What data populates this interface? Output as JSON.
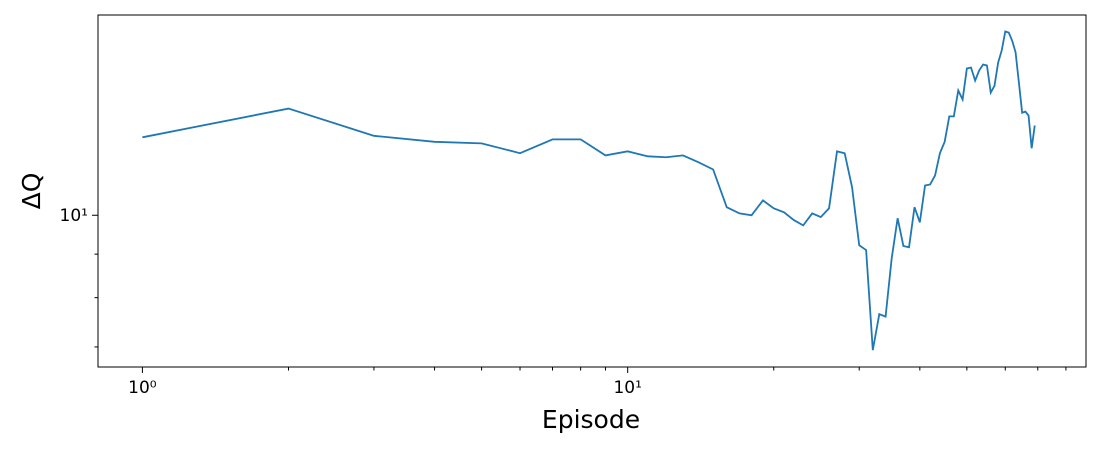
{
  "chart_data": {
    "type": "line",
    "xlabel": "Episode",
    "ylabel": "ΔQ",
    "xscale": "log",
    "yscale": "log",
    "xlim": [
      0.81,
      88
    ],
    "ylim": [
      6.63,
      17.2
    ],
    "xticks": [
      {
        "value": 1,
        "label": "10⁰"
      },
      {
        "value": 10,
        "label": "10¹"
      }
    ],
    "xminorticks": [
      2,
      3,
      4,
      5,
      6,
      7,
      8,
      9,
      20,
      30,
      40,
      50,
      60,
      70,
      80
    ],
    "yticks": [
      {
        "value": 10,
        "label": "10¹"
      }
    ],
    "yminorticks": [
      7,
      8,
      9
    ],
    "series": [
      {
        "color": "#1f77b4",
        "x": [
          1,
          2,
          3,
          4,
          5,
          6,
          7,
          8,
          9,
          10,
          11,
          12,
          13,
          14,
          15,
          16,
          17,
          18,
          19,
          20,
          21,
          22,
          23,
          24,
          25,
          26,
          27,
          28,
          29,
          30,
          31,
          32,
          33,
          34,
          35,
          36,
          37,
          38,
          39,
          40,
          41,
          42,
          43,
          44,
          45,
          46,
          47,
          48,
          49,
          50,
          51,
          52,
          53,
          54,
          55,
          56,
          57,
          58,
          59,
          60,
          61,
          62,
          63,
          64,
          65,
          66,
          67,
          68,
          69
        ],
        "values": [
          12.35,
          13.35,
          12.4,
          12.2,
          12.15,
          11.83,
          12.28,
          12.28,
          11.76,
          11.89,
          11.73,
          11.7,
          11.76,
          11.54,
          11.32,
          10.22,
          10.05,
          10.0,
          10.41,
          10.19,
          10.08,
          9.87,
          9.73,
          10.05,
          9.95,
          10.19,
          11.89,
          11.83,
          10.79,
          9.22,
          9.1,
          6.94,
          7.65,
          7.6,
          8.9,
          9.92,
          9.2,
          9.17,
          10.22,
          9.81,
          10.84,
          10.87,
          11.14,
          11.83,
          12.2,
          13.07,
          13.07,
          14.02,
          13.68,
          14.88,
          14.92,
          14.4,
          14.8,
          15.04,
          15.0,
          13.94,
          14.2,
          15.12,
          15.63,
          16.45,
          16.4,
          16.04,
          15.55,
          14.32,
          13.2,
          13.24,
          13.1,
          11.99,
          12.75
        ]
      }
    ]
  }
}
